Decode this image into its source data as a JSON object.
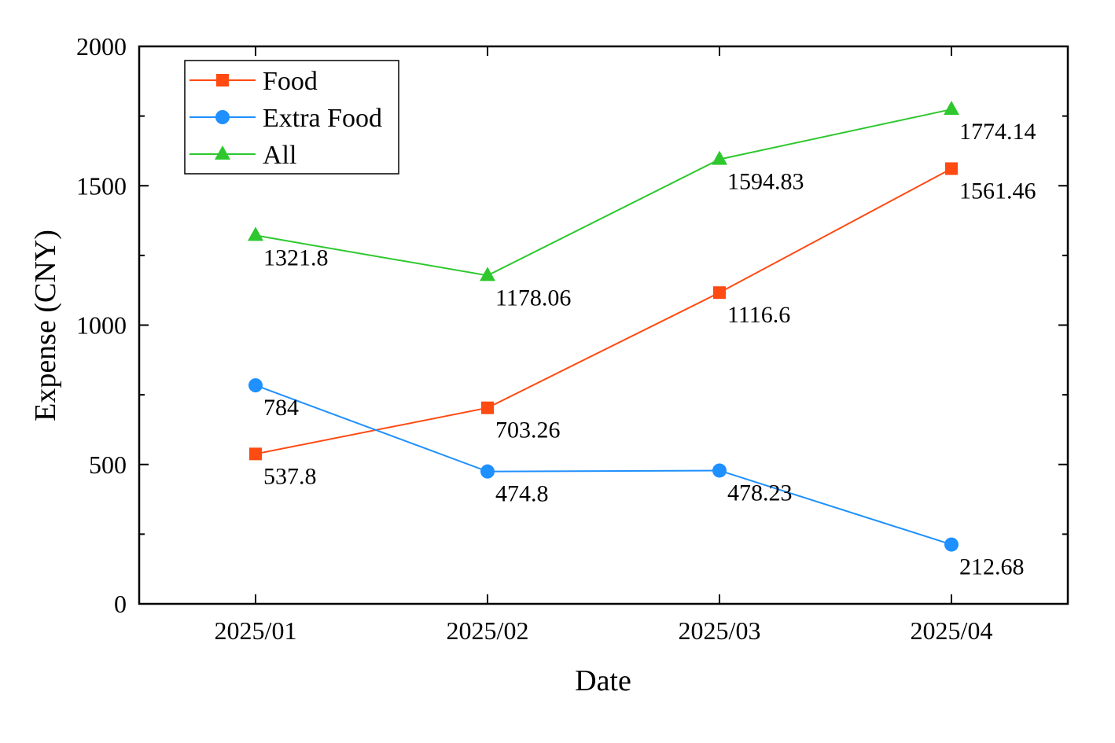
{
  "chart_data": {
    "type": "line",
    "title": "",
    "xlabel": "Date",
    "ylabel": "Expense (CNY)",
    "categories": [
      "2025/01",
      "2025/02",
      "2025/03",
      "2025/04"
    ],
    "ylim": [
      0,
      2000
    ],
    "yticks": [
      0,
      500,
      1000,
      1500,
      2000
    ],
    "grid": false,
    "legend_position": "top-left",
    "series": [
      {
        "name": "Food",
        "color": "#ff4a12",
        "marker": "square",
        "values": [
          537.8,
          703.26,
          1116.6,
          1561.46
        ],
        "labels": [
          "537.8",
          "703.26",
          "1116.6",
          "1561.46"
        ]
      },
      {
        "name": "Extra Food",
        "color": "#1e90ff",
        "marker": "circle",
        "values": [
          784,
          474.8,
          478.23,
          212.68
        ],
        "labels": [
          "784",
          "474.8",
          "478.23",
          "212.68"
        ]
      },
      {
        "name": "All",
        "color": "#2ec82e",
        "marker": "triangle",
        "values": [
          1321.8,
          1178.06,
          1594.83,
          1774.14
        ],
        "labels": [
          "1321.8",
          "1178.06",
          "1594.83",
          "1774.14"
        ]
      }
    ]
  }
}
